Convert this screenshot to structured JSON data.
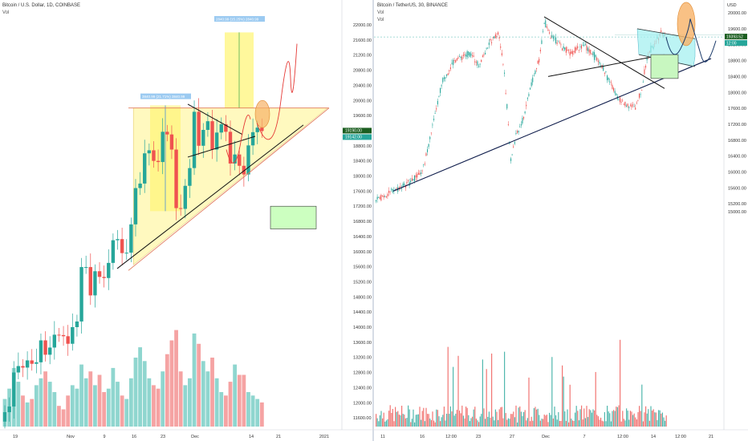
{
  "left": {
    "title": "Bitcoin / U.S. Dollar, 1D, COINBASE",
    "vol_label": "Vol",
    "price_ticks": [
      "22000.00",
      "21600.00",
      "21200.00",
      "20800.00",
      "20400.00",
      "20000.00",
      "19600.00",
      "19200.00",
      "18800.00",
      "18400.00",
      "18000.00",
      "17600.00",
      "17200.00",
      "16800.00",
      "16400.00",
      "16000.00",
      "15600.00",
      "15200.00",
      "14800.00",
      "14400.00",
      "14000.00",
      "13600.00",
      "13200.00",
      "12800.00",
      "12400.00",
      "12000.00",
      "11600.00"
    ],
    "time_ticks": [
      "19",
      "Nov",
      "9",
      "16",
      "23",
      "Dec",
      "14",
      "21",
      "2021"
    ],
    "price_badges": [
      "19190.00",
      "19142.00"
    ],
    "measure_labels": [
      "2840.99 (15.25%) 2840.99",
      "3840.99 (21.71%) 3840.99"
    ],
    "colors": {
      "up": "#26a69a",
      "down": "#ef5350",
      "vol_up": "#8fd6cf",
      "vol_down": "#f5a3a3",
      "triangle_fill": "#fff48a",
      "rect_fill": "#ccffc0",
      "orange": "#f7b267",
      "red_path": "#e53935"
    }
  },
  "right": {
    "title": "Bitcoin / TetherUS, 30, BINANCE",
    "vol_label": "Vol",
    "vol_label_2": "Vol",
    "currency_label": "USD",
    "price_ticks": [
      "20000.00",
      "19600.00",
      "19200.00",
      "18800.00",
      "18400.00",
      "18000.00",
      "17600.00",
      "17200.00",
      "16800.00",
      "16400.00",
      "16000.00",
      "15600.00",
      "15200.00",
      "15000.00"
    ],
    "time_ticks": [
      "11",
      "16",
      "12:00",
      "23",
      "27",
      "Dec",
      "7",
      "12:00",
      "14",
      "12:00",
      "21"
    ],
    "price_badges": [
      "19393.52",
      "12:00"
    ],
    "colors": {
      "up": "#26a69a",
      "down": "#ef5350",
      "cyan_fill": "#9ff0f0",
      "green_fill": "#c8f7c0",
      "orange": "#f7b267"
    }
  },
  "chart_data": [
    {
      "type": "candlestick",
      "title": "Bitcoin / U.S. Dollar, 1D, COINBASE",
      "xlabel": "",
      "ylabel": "USD",
      "ylim": [
        11400,
        22400
      ],
      "x": [
        "Oct 19",
        "Oct 20",
        "Oct 21",
        "Oct 22",
        "Oct 23",
        "Oct 24",
        "Oct 25",
        "Oct 26",
        "Oct 27",
        "Oct 28",
        "Oct 29",
        "Oct 30",
        "Oct 31",
        "Nov 1",
        "Nov 2",
        "Nov 3",
        "Nov 4",
        "Nov 5",
        "Nov 6",
        "Nov 7",
        "Nov 8",
        "Nov 9",
        "Nov 10",
        "Nov 11",
        "Nov 12",
        "Nov 13",
        "Nov 14",
        "Nov 15",
        "Nov 16",
        "Nov 17",
        "Nov 18",
        "Nov 19",
        "Nov 20",
        "Nov 21",
        "Nov 22",
        "Nov 23",
        "Nov 24",
        "Nov 25",
        "Nov 26",
        "Nov 27",
        "Nov 28",
        "Nov 29",
        "Nov 30",
        "Dec 1",
        "Dec 2",
        "Dec 3",
        "Dec 4",
        "Dec 5",
        "Dec 6",
        "Dec 7",
        "Dec 8",
        "Dec 9",
        "Dec 10",
        "Dec 11",
        "Dec 12",
        "Dec 13",
        "Dec 14",
        "Dec 15"
      ],
      "open": [
        11500,
        11750,
        11900,
        12800,
        12970,
        12930,
        13120,
        13030,
        13070,
        13650,
        13270,
        13460,
        13800,
        13790,
        13760,
        13560,
        14000,
        14150,
        15590,
        15590,
        14840,
        15480,
        15330,
        15300,
        15700,
        16300,
        16330,
        15960,
        15970,
        16720,
        17680,
        17800,
        18600,
        18680,
        18400,
        18370,
        19170,
        19100,
        18700,
        17150,
        17130,
        17740,
        18210,
        19700,
        18800,
        19220,
        19450,
        18700,
        19150,
        19370,
        19170,
        18330,
        18570,
        18270,
        18040,
        18810,
        19160,
        19280
      ],
      "close": [
        11750,
        11900,
        12800,
        12970,
        12930,
        13120,
        13030,
        13070,
        13650,
        13270,
        13460,
        13800,
        13790,
        13760,
        13560,
        14000,
        14150,
        15590,
        15590,
        14840,
        15480,
        15330,
        15300,
        15700,
        16300,
        16330,
        15960,
        15970,
        16720,
        17680,
        17800,
        18600,
        18680,
        18400,
        18370,
        19170,
        19100,
        18700,
        17150,
        17130,
        17740,
        18210,
        19700,
        18800,
        19220,
        19450,
        18700,
        19150,
        19370,
        19170,
        18330,
        18570,
        18270,
        18040,
        18810,
        19160,
        19280,
        19190
      ],
      "volume": [
        8,
        11,
        17,
        13,
        9,
        7,
        8,
        12,
        14,
        16,
        13,
        10,
        6,
        5,
        9,
        12,
        11,
        18,
        14,
        16,
        12,
        15,
        10,
        11,
        17,
        13,
        9,
        8,
        14,
        20,
        23,
        19,
        14,
        12,
        11,
        16,
        21,
        25,
        28,
        16,
        12,
        14,
        27,
        24,
        19,
        16,
        20,
        14,
        10,
        9,
        13,
        18,
        15,
        15,
        10,
        9,
        8,
        7
      ],
      "volume_unit": "relative",
      "annotations": {
        "ascending_triangle_top": 19800,
        "support_line": [
          [
            "Nov 13",
            15700
          ],
          [
            "Dec 31",
            19500
          ]
        ],
        "target_box": [
          16600,
          17400
        ]
      }
    },
    {
      "type": "candlestick",
      "title": "Bitcoin / TetherUS, 30, BINANCE",
      "xlabel": "",
      "ylabel": "USD",
      "ylim": [
        14800,
        20100
      ],
      "x": [
        "Nov 11",
        "Nov 16",
        "Nov 16 12:00",
        "Nov 23",
        "Nov 27",
        "Dec 1",
        "Dec 7",
        "Dec 7 12:00",
        "Dec 14",
        "Dec 14 12:00",
        "Dec 21"
      ],
      "close": [
        15300,
        16000,
        18700,
        19150,
        16800,
        18950,
        19350,
        18700,
        18800,
        19393.52,
        19600
      ],
      "price_label": 19393.52,
      "annotations": {
        "support_line": [
          [
            "Nov 11",
            15500
          ],
          [
            "Dec 21",
            18800
          ]
        ],
        "descending_line": [
          [
            "Nov 27",
            19900
          ],
          [
            "Dec 14",
            18000
          ]
        ]
      }
    }
  ]
}
